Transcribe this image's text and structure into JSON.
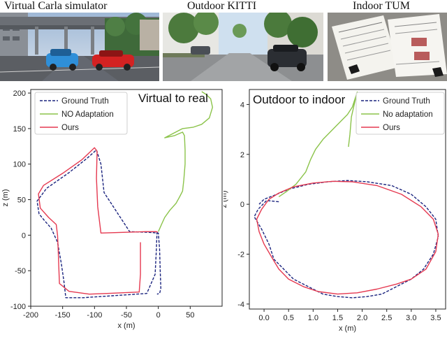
{
  "photos": [
    {
      "caption": "Virtual Carla simulator"
    },
    {
      "caption": "Outdoor KITTI"
    },
    {
      "caption": "Indoor TUM"
    }
  ],
  "colors": {
    "ground_truth": "#1a237e",
    "no_adaptation": "#8bc34a",
    "ours": "#e53950"
  },
  "chart_data": [
    {
      "type": "line",
      "annotation": "Virtual to real",
      "xlabel": "x (m)",
      "ylabel": "z (m)",
      "xlim": [
        -200,
        100
      ],
      "ylim": [
        -100,
        205
      ],
      "xticks": [
        -200,
        -150,
        -100,
        -50,
        0,
        50
      ],
      "yticks": [
        -100,
        -50,
        0,
        50,
        100,
        150,
        200
      ],
      "legend": {
        "position": "top-left",
        "entries": [
          "Ground Truth",
          "NO Adaptation",
          "Ours"
        ]
      },
      "series": [
        {
          "name": "Ground Truth",
          "style": "dashed",
          "x": [
            -2,
            -3,
            -5,
            -18,
            -50,
            -85,
            -118,
            -145,
            -148,
            -152,
            -158,
            -168,
            -178,
            -187,
            -190,
            -175,
            -140,
            -112,
            -97,
            -90,
            -85,
            -45,
            -15,
            0,
            2,
            3,
            4,
            2,
            -2
          ],
          "y": [
            5,
            -20,
            -55,
            -82,
            -84,
            -86,
            -88,
            -88,
            -65,
            -40,
            -10,
            10,
            20,
            30,
            48,
            66,
            88,
            108,
            120,
            100,
            60,
            5,
            4,
            3,
            -20,
            -50,
            -75,
            -82,
            -83
          ]
        },
        {
          "name": "NO Adaptation",
          "style": "solid",
          "x": [
            0,
            5,
            10,
            18,
            28,
            34,
            38,
            40,
            42,
            42,
            41,
            38,
            25,
            10,
            38,
            55,
            68,
            80,
            85,
            82,
            75,
            68
          ],
          "y": [
            5,
            15,
            25,
            35,
            45,
            55,
            62,
            78,
            100,
            120,
            140,
            145,
            140,
            137,
            150,
            152,
            156,
            165,
            180,
            192,
            198,
            202
          ]
        },
        {
          "name": "Ours",
          "style": "solid",
          "x": [
            -28,
            -28,
            -28,
            -30,
            -55,
            -80,
            -108,
            -140,
            -155,
            -156,
            -157,
            -158,
            -160,
            -172,
            -185,
            -188,
            -180,
            -150,
            -120,
            -100,
            -96,
            -97,
            -95,
            -90,
            -55,
            -20,
            -3,
            -1
          ],
          "y": [
            -10,
            -30,
            -55,
            -80,
            -81,
            -82,
            -83,
            -79,
            -68,
            -45,
            -20,
            0,
            15,
            25,
            38,
            58,
            70,
            87,
            106,
            123,
            118,
            80,
            40,
            3,
            4,
            5,
            5,
            4
          ]
        }
      ]
    },
    {
      "type": "line",
      "annotation": "Outdoor to indoor",
      "xlabel": "x (m)",
      "ylabel": "z (m)",
      "xlim": [
        -0.3,
        3.7
      ],
      "ylim": [
        -4.2,
        4.6
      ],
      "xticks": [
        0.0,
        0.5,
        1.0,
        1.5,
        2.0,
        2.5,
        3.0,
        3.5
      ],
      "xticklabels": [
        "0.0",
        "0.5",
        "1.0",
        "1.5",
        "2.0",
        "2.5",
        "3.0",
        "3.5"
      ],
      "yticks": [
        -4,
        -2,
        0,
        2,
        4
      ],
      "legend": {
        "position": "top-right",
        "entries": [
          "Ground Truth",
          "No adaptation",
          "Ours"
        ]
      },
      "series": [
        {
          "name": "Ground Truth",
          "style": "dashed",
          "x": [
            0.3,
            0.05,
            -0.12,
            -0.2,
            -0.05,
            0.1,
            0.2,
            0.4,
            0.6,
            0.9,
            1.2,
            1.5,
            1.8,
            2.1,
            2.4,
            2.7,
            3.0,
            3.25,
            3.45,
            3.55,
            3.5,
            3.3,
            3.0,
            2.6,
            2.1,
            1.7,
            1.3,
            0.9,
            0.5,
            0.2,
            0.0,
            -0.1
          ],
          "y": [
            0.1,
            0.15,
            -0.2,
            -0.5,
            -1.0,
            -1.6,
            -2.2,
            -2.6,
            -3.0,
            -3.3,
            -3.6,
            -3.7,
            -3.75,
            -3.7,
            -3.6,
            -3.3,
            -3.0,
            -2.6,
            -2.0,
            -1.3,
            -0.6,
            -0.1,
            0.4,
            0.75,
            0.9,
            0.95,
            0.9,
            0.8,
            0.6,
            0.35,
            0.2,
            0.0
          ]
        },
        {
          "name": "No adaptation",
          "style": "solid",
          "x": [
            0.3,
            0.45,
            0.65,
            0.85,
            0.95,
            1.05,
            1.2,
            1.4,
            1.55,
            1.7,
            1.8,
            1.85,
            1.9,
            1.85,
            1.78,
            1.75,
            1.72
          ],
          "y": [
            0.3,
            0.5,
            0.8,
            1.3,
            1.8,
            2.2,
            2.6,
            3.0,
            3.3,
            3.6,
            3.9,
            4.2,
            4.5,
            4.1,
            3.5,
            2.8,
            2.3
          ]
        },
        {
          "name": "Ours",
          "style": "solid",
          "x": [
            0.1,
            -0.05,
            -0.15,
            -0.1,
            0.0,
            0.15,
            0.3,
            0.5,
            0.8,
            1.1,
            1.5,
            1.9,
            2.3,
            2.7,
            3.0,
            3.3,
            3.5,
            3.55,
            3.45,
            3.2,
            2.8,
            2.3,
            1.8,
            1.4,
            1.0,
            0.6,
            0.3,
            0.1
          ],
          "y": [
            0.2,
            -0.2,
            -0.6,
            -1.1,
            -1.6,
            -2.1,
            -2.6,
            -3.0,
            -3.3,
            -3.5,
            -3.6,
            -3.55,
            -3.4,
            -3.2,
            -3.0,
            -2.6,
            -1.9,
            -1.2,
            -0.6,
            -0.1,
            0.4,
            0.75,
            0.9,
            0.92,
            0.85,
            0.7,
            0.45,
            0.2
          ]
        }
      ]
    }
  ]
}
